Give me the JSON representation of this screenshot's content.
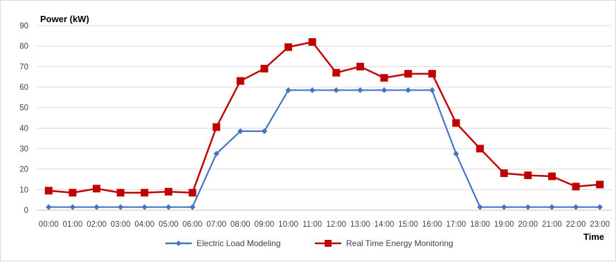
{
  "chart_data": {
    "type": "line",
    "title": "",
    "ylabel": "Power (kW)",
    "xlabel": "Time",
    "ylim": [
      0,
      90
    ],
    "yticks": [
      0,
      10,
      20,
      30,
      40,
      50,
      60,
      70,
      80,
      90
    ],
    "grid": true,
    "legend_position": "bottom",
    "categories": [
      "00:00",
      "01:00",
      "02:00",
      "03:00",
      "04:00",
      "05:00",
      "06:00",
      "07:00",
      "08:00",
      "09:00",
      "10:00",
      "11:00",
      "12:00",
      "13:00",
      "14:00",
      "15:00",
      "16:00",
      "17:00",
      "18:00",
      "19:00",
      "20:00",
      "21:00",
      "22:00",
      "23:00"
    ],
    "series": [
      {
        "name": "Electric Load Modeling",
        "color": "#4472C4",
        "marker": "diamond",
        "values": [
          1.5,
          1.5,
          1.5,
          1.5,
          1.5,
          1.5,
          1.5,
          27.5,
          38.5,
          38.5,
          58.5,
          58.5,
          58.5,
          58.5,
          58.5,
          58.5,
          58.5,
          27.5,
          1.5,
          1.5,
          1.5,
          1.5,
          1.5,
          1.5
        ]
      },
      {
        "name": "Real Time Energy Monitoring",
        "color": "#C00000",
        "marker": "square",
        "values": [
          9.5,
          8.5,
          10.5,
          8.5,
          8.5,
          9,
          8.5,
          40.5,
          63,
          69,
          79.5,
          82,
          67,
          70,
          64.5,
          66.5,
          66.5,
          42.5,
          30,
          18,
          17,
          16.5,
          11.5,
          12.5
        ]
      }
    ]
  }
}
